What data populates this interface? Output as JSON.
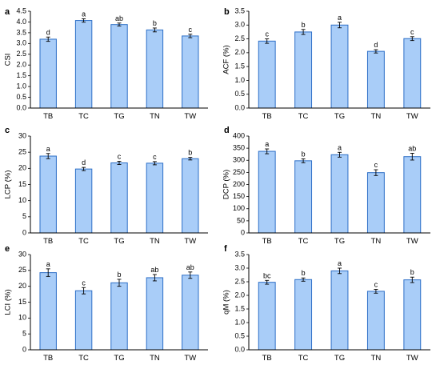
{
  "colors": {
    "bar_fill": "#a9cdf8",
    "bar_stroke": "#2d6fc7",
    "axis": "#000000"
  },
  "chart_data": [
    {
      "panel": "a",
      "type": "bar",
      "categories": [
        "TB",
        "TC",
        "TG",
        "TN",
        "TW"
      ],
      "ylabel": "CSI",
      "ylim": [
        0,
        4.5
      ],
      "ytick_step": 0.5,
      "ytick_decimals": 1,
      "values": [
        3.2,
        4.07,
        3.88,
        3.63,
        3.35
      ],
      "errors": [
        0.1,
        0.08,
        0.07,
        0.09,
        0.08
      ],
      "letters": [
        "d",
        "a",
        "ab",
        "b",
        "c"
      ]
    },
    {
      "panel": "b",
      "type": "bar",
      "categories": [
        "TB",
        "TC",
        "TG",
        "TN",
        "TW"
      ],
      "ylabel": "ACF (%)",
      "ylim": [
        0,
        3.5
      ],
      "ytick_step": 0.5,
      "ytick_decimals": 1,
      "values": [
        2.42,
        2.75,
        3.0,
        2.05,
        2.51
      ],
      "errors": [
        0.08,
        0.09,
        0.1,
        0.06,
        0.07
      ],
      "letters": [
        "c",
        "b",
        "a",
        "d",
        "c"
      ]
    },
    {
      "panel": "c",
      "type": "bar",
      "categories": [
        "TB",
        "TC",
        "TG",
        "TN",
        "TW"
      ],
      "ylabel": "LCP (%)",
      "ylim": [
        0,
        30
      ],
      "ytick_step": 5,
      "ytick_decimals": 0,
      "values": [
        23.8,
        19.8,
        21.7,
        21.6,
        23.0
      ],
      "errors": [
        0.8,
        0.5,
        0.5,
        0.5,
        0.4
      ],
      "letters": [
        "a",
        "d",
        "c",
        "c",
        "b"
      ]
    },
    {
      "panel": "d",
      "type": "bar",
      "categories": [
        "TB",
        "TC",
        "TG",
        "TN",
        "TW"
      ],
      "ylabel": "DCP (%)",
      "ylim": [
        0,
        400
      ],
      "ytick_step": 50,
      "ytick_decimals": 0,
      "values": [
        337,
        298,
        323,
        249,
        315
      ],
      "errors": [
        10,
        8,
        10,
        12,
        14
      ],
      "letters": [
        "a",
        "b",
        "a",
        "c",
        "ab"
      ]
    },
    {
      "panel": "e",
      "type": "bar",
      "categories": [
        "TB",
        "TC",
        "TG",
        "TN",
        "TW"
      ],
      "ylabel": "LCI (%)",
      "ylim": [
        0,
        30
      ],
      "ytick_step": 5,
      "ytick_decimals": 0,
      "values": [
        24.3,
        18.6,
        21.1,
        22.7,
        23.5
      ],
      "errors": [
        1.2,
        1.0,
        1.1,
        1.0,
        1.0
      ],
      "letters": [
        "a",
        "c",
        "b",
        "ab",
        "ab"
      ]
    },
    {
      "panel": "f",
      "type": "bar",
      "categories": [
        "TB",
        "TC",
        "TG",
        "TN",
        "TW"
      ],
      "ylabel": "qM (%)",
      "ylim": [
        0,
        3.5
      ],
      "ytick_step": 0.5,
      "ytick_decimals": 1,
      "values": [
        2.48,
        2.58,
        2.9,
        2.15,
        2.57
      ],
      "errors": [
        0.07,
        0.06,
        0.1,
        0.07,
        0.1
      ],
      "letters": [
        "bc",
        "b",
        "a",
        "c",
        "b"
      ]
    }
  ]
}
